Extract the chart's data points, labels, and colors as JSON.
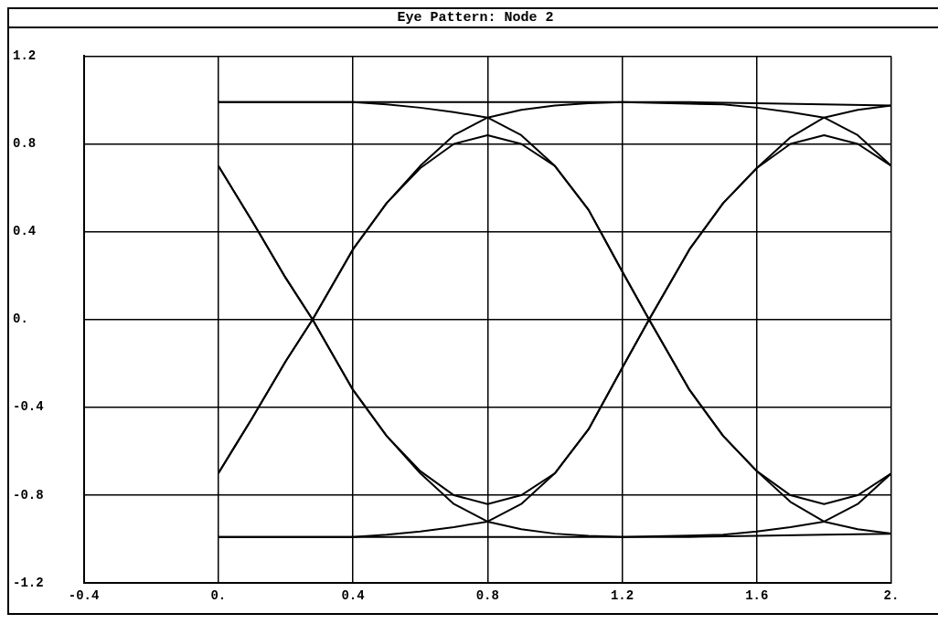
{
  "chart_data": {
    "type": "line",
    "title": "Eye Pattern: Node 2",
    "xlim": [
      -0.4,
      2
    ],
    "ylim": [
      -1.2,
      1.2
    ],
    "xticks": [
      {
        "value": -0.4,
        "label": "-0.4"
      },
      {
        "value": 0,
        "label": "0."
      },
      {
        "value": 0.4,
        "label": "0.4"
      },
      {
        "value": 0.8,
        "label": "0.8"
      },
      {
        "value": 1.2,
        "label": "1.2"
      },
      {
        "value": 1.6,
        "label": "1.6"
      },
      {
        "value": 2,
        "label": "2."
      }
    ],
    "yticks": [
      {
        "value": -1.2,
        "label": "-1.2"
      },
      {
        "value": -0.8,
        "label": "-0.8"
      },
      {
        "value": -0.4,
        "label": "-0.4"
      },
      {
        "value": 0,
        "label": "0."
      },
      {
        "value": 0.4,
        "label": "0.4"
      },
      {
        "value": 0.8,
        "label": "0.8"
      },
      {
        "value": 1.2,
        "label": "1.2"
      }
    ],
    "grid": true,
    "legend": false,
    "marker": "none",
    "line_style": "solid",
    "series": [
      {
        "color": "#000000",
        "x": [
          0,
          0.1,
          0.2,
          0.28,
          0.4,
          0.5,
          0.6,
          0.7,
          0.8,
          0.9,
          1.0,
          1.1,
          1.2,
          1.28,
          1.4,
          1.5,
          1.6,
          1.7,
          1.8,
          1.9,
          2
        ],
        "values": [
          -0.7,
          -0.45,
          -0.19,
          0,
          0.32,
          0.53,
          0.69,
          0.8,
          0.84,
          0.8,
          0.7,
          0.5,
          0.22,
          0,
          -0.32,
          -0.53,
          -0.69,
          -0.8,
          -0.84,
          -0.8,
          -0.7
        ]
      },
      {
        "color": "#000000",
        "x": [
          0,
          0.1,
          0.2,
          0.28,
          0.4,
          0.5,
          0.6,
          0.7,
          0.8,
          0.9,
          1.0,
          1.1,
          1.2,
          1.28,
          1.4,
          1.5,
          1.6,
          1.7,
          1.8,
          1.9,
          2
        ],
        "values": [
          0.7,
          0.45,
          0.19,
          0,
          -0.32,
          -0.53,
          -0.69,
          -0.8,
          -0.84,
          -0.8,
          -0.7,
          -0.5,
          -0.22,
          0,
          0.32,
          0.53,
          0.69,
          0.8,
          0.84,
          0.8,
          0.7
        ]
      },
      {
        "color": "#000000",
        "x": [
          0,
          0.4,
          0.5,
          0.6,
          0.7,
          0.8,
          0.9,
          1.0,
          1.1,
          1.2,
          1.28,
          1.4,
          1.5,
          1.6,
          1.7,
          1.8,
          1.9,
          2
        ],
        "values": [
          0.99,
          0.99,
          0.98,
          0.965,
          0.945,
          0.92,
          0.84,
          0.7,
          0.5,
          0.22,
          0,
          -0.32,
          -0.53,
          -0.69,
          -0.83,
          -0.92,
          -0.955,
          -0.975
        ]
      },
      {
        "color": "#000000",
        "x": [
          0,
          0.4,
          0.5,
          0.6,
          0.7,
          0.8,
          0.9,
          1.0,
          1.1,
          1.2,
          1.28,
          1.4,
          1.5,
          1.6,
          1.7,
          1.8,
          1.9,
          2
        ],
        "values": [
          -0.99,
          -0.99,
          -0.98,
          -0.965,
          -0.945,
          -0.92,
          -0.84,
          -0.7,
          -0.5,
          -0.22,
          0,
          0.32,
          0.53,
          0.69,
          0.83,
          0.92,
          0.955,
          0.975
        ]
      },
      {
        "color": "#000000",
        "x": [
          0,
          0.1,
          0.2,
          0.28,
          0.4,
          0.5,
          0.6,
          0.7,
          0.8,
          0.9,
          1.0,
          1.1,
          1.2,
          1.4,
          1.6,
          1.8,
          2
        ],
        "values": [
          -0.7,
          -0.45,
          -0.19,
          0,
          0.32,
          0.53,
          0.7,
          0.84,
          0.92,
          0.955,
          0.975,
          0.985,
          0.99,
          0.99,
          0.985,
          0.98,
          0.975
        ]
      },
      {
        "color": "#000000",
        "x": [
          0,
          0.1,
          0.2,
          0.28,
          0.4,
          0.5,
          0.6,
          0.7,
          0.8,
          0.9,
          1.0,
          1.1,
          1.2,
          1.4,
          1.6,
          1.8,
          2
        ],
        "values": [
          0.7,
          0.45,
          0.19,
          0,
          -0.32,
          -0.53,
          -0.7,
          -0.84,
          -0.92,
          -0.955,
          -0.975,
          -0.985,
          -0.99,
          -0.99,
          -0.985,
          -0.98,
          -0.975
        ]
      },
      {
        "color": "#000000",
        "x": [
          0,
          0.4,
          0.8,
          1.2,
          1.5,
          1.6,
          1.7,
          1.8,
          1.9,
          2
        ],
        "values": [
          0.99,
          0.99,
          0.99,
          0.99,
          0.98,
          0.965,
          0.945,
          0.92,
          0.84,
          0.7
        ]
      },
      {
        "color": "#000000",
        "x": [
          0,
          0.4,
          0.8,
          1.2,
          1.5,
          1.6,
          1.7,
          1.8,
          1.9,
          2
        ],
        "values": [
          -0.99,
          -0.99,
          -0.99,
          -0.99,
          -0.98,
          -0.965,
          -0.945,
          -0.92,
          -0.84,
          -0.7
        ]
      }
    ]
  }
}
